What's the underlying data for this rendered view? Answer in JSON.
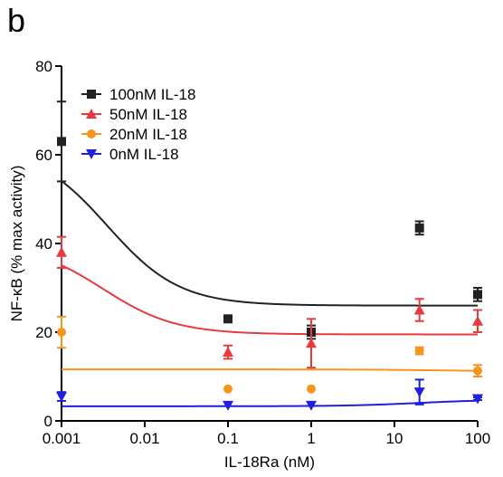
{
  "panel_label": "b",
  "chart_data": {
    "type": "scatter",
    "xlabel": "IL-18Ra  (nM)",
    "ylabel": "NF-κB (% max activity)",
    "xscale": "log",
    "xlim": [
      0.001,
      100
    ],
    "ylim": [
      0,
      80
    ],
    "xticks": [
      0.001,
      0.01,
      0.1,
      1,
      10,
      100
    ],
    "xtick_labels": [
      "0.001",
      "0.01",
      "0.1",
      "1",
      "10",
      "100"
    ],
    "yticks": [
      0,
      20,
      40,
      60,
      80
    ],
    "ytick_labels": [
      "0",
      "20",
      "40",
      "60",
      "80"
    ],
    "legend_position": "top-left",
    "series": [
      {
        "name": "100nM IL-18",
        "color": "#222222",
        "marker": "square",
        "x": [
          0.001,
          0.1,
          1,
          20,
          100
        ],
        "y": [
          63,
          23,
          20,
          43.5,
          28.5
        ],
        "err": [
          9,
          0.5,
          1.5,
          1.5,
          1.5
        ],
        "fit": {
          "top": 62,
          "bottom": 26,
          "logEC50": -2.45
        }
      },
      {
        "name": "50nM IL-18",
        "color": "#e8393f",
        "marker": "triangle-up",
        "x": [
          0.001,
          0.1,
          1,
          20,
          100
        ],
        "y": [
          38,
          15.5,
          17.5,
          25,
          22.5
        ],
        "err": [
          3.5,
          1.5,
          5.5,
          2.5,
          2.5
        ],
        "fit": {
          "top": 40,
          "bottom": 19.5,
          "logEC50": -2.5
        }
      },
      {
        "name": "20nM IL-18",
        "color": "#f7941d",
        "marker": "circle",
        "x": [
          0.001,
          0.1,
          1,
          20,
          100
        ],
        "y": [
          20,
          7.2,
          7.2,
          15.8,
          11.3
        ],
        "err": [
          3.5,
          0,
          0,
          0.8,
          1.3
        ],
        "fit": {
          "top": 11.6,
          "bottom": 11.2,
          "logEC50": 1.5
        }
      },
      {
        "name": "0nM IL-18",
        "color": "#1f1fe0",
        "marker": "triangle-down",
        "x": [
          0.001,
          0.1,
          1,
          20,
          100
        ],
        "y": [
          5.5,
          3.5,
          3.5,
          6.5,
          5
        ],
        "err": [
          1,
          0,
          0,
          2.8,
          0.3
        ],
        "fit": {
          "top": 3.3,
          "bottom": 4.8,
          "logEC50": 1.3
        }
      }
    ]
  }
}
